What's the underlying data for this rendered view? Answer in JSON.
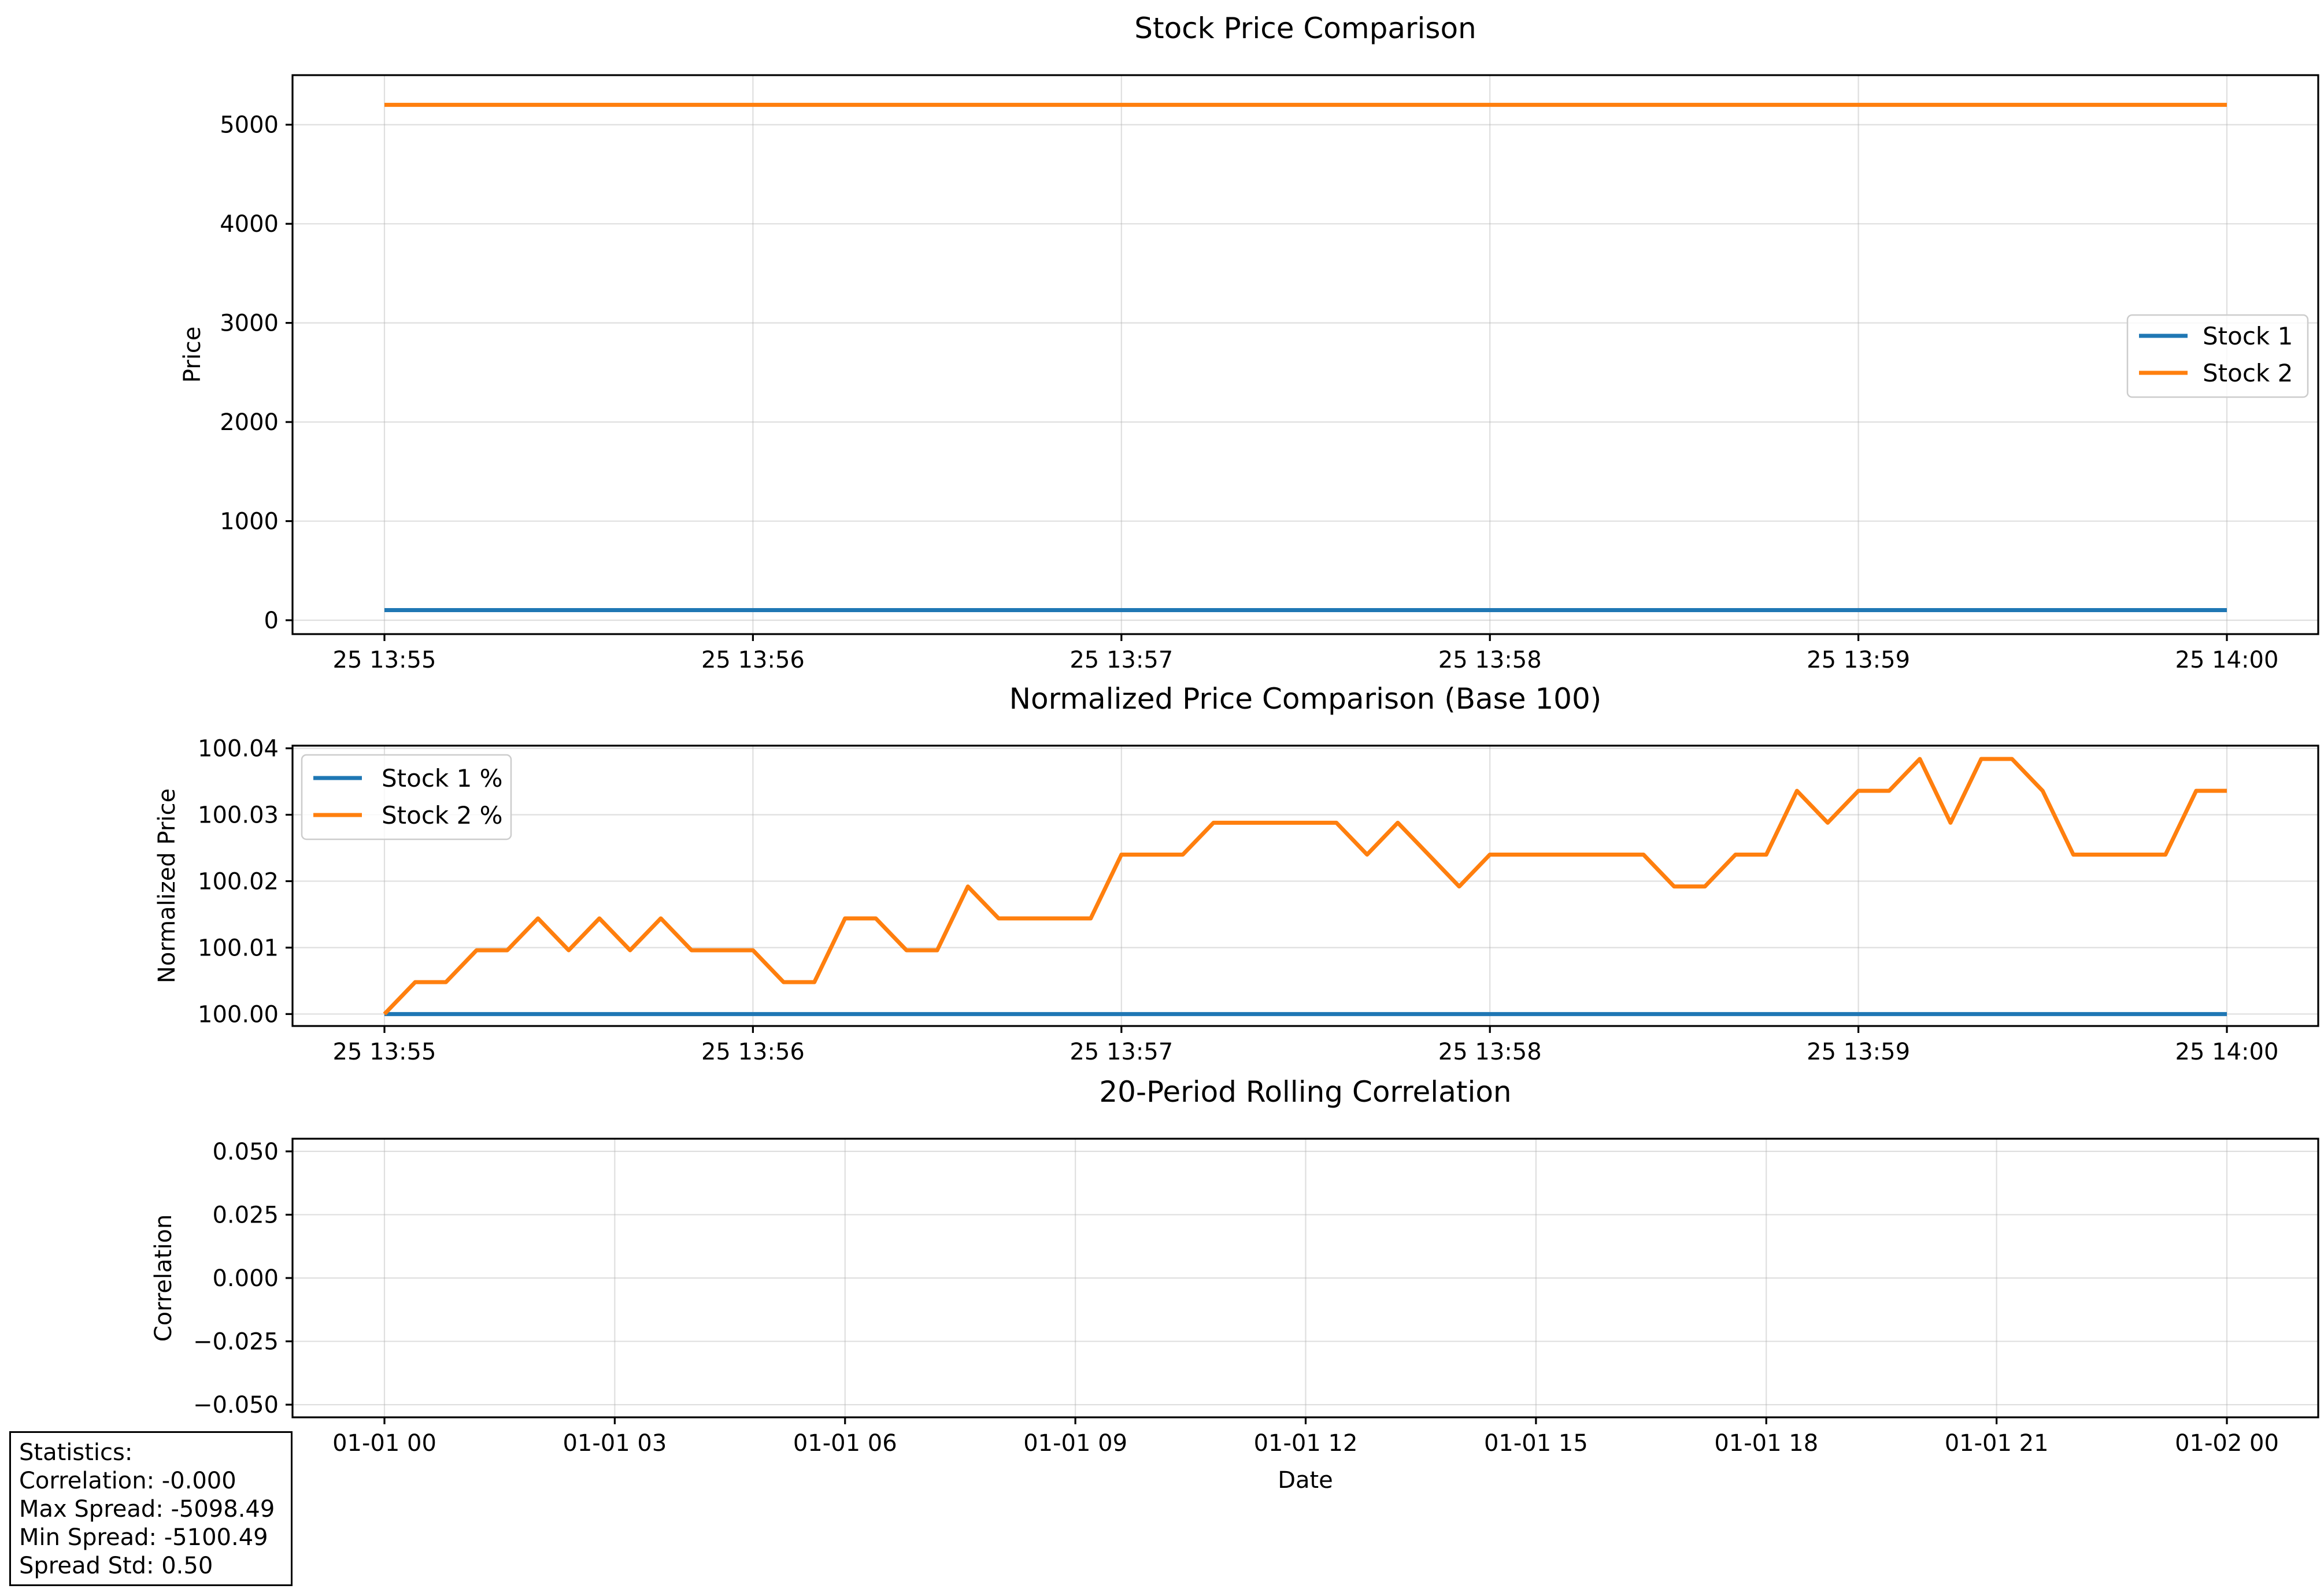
{
  "chart_data": [
    {
      "type": "line",
      "title": "Stock Price Comparison",
      "xlabel": "",
      "ylabel": "Price",
      "x": [
        "25 13:55",
        "25 13:56",
        "25 13:57",
        "25 13:58",
        "25 13:59",
        "25 14:00"
      ],
      "x_ticks": [
        "25 13:55",
        "25 13:56",
        "25 13:57",
        "25 13:58",
        "25 13:59",
        "25 14:00"
      ],
      "y_ticks": [
        0,
        1000,
        2000,
        3000,
        4000,
        5000
      ],
      "ylim": [
        -140,
        5500
      ],
      "grid": true,
      "legend": "center-right",
      "series": [
        {
          "name": "Stock 1",
          "color": "#1f77b4",
          "values": [
            102,
            102,
            102,
            102,
            102,
            102
          ]
        },
        {
          "name": "Stock 2",
          "color": "#ff7f0e",
          "values": [
            5200,
            5200,
            5200,
            5200,
            5200,
            5200
          ]
        }
      ]
    },
    {
      "type": "line",
      "title": "Normalized Price Comparison (Base 100)",
      "xlabel": "",
      "ylabel": "Normalized Price",
      "x_ticks": [
        "25 13:55",
        "25 13:56",
        "25 13:57",
        "25 13:58",
        "25 13:59",
        "25 14:00"
      ],
      "y_ticks": [
        "100.00",
        "100.01",
        "100.02",
        "100.03",
        "100.04"
      ],
      "ylim": [
        99.9982,
        100.0404
      ],
      "grid": true,
      "legend": "upper-left",
      "series": [
        {
          "name": "Stock 1 %",
          "color": "#1f77b4",
          "values": [
            100.0,
            100.0,
            100.0,
            100.0,
            100.0,
            100.0,
            100.0,
            100.0,
            100.0,
            100.0,
            100.0,
            100.0,
            100.0,
            100.0,
            100.0,
            100.0,
            100.0,
            100.0,
            100.0,
            100.0,
            100.0,
            100.0,
            100.0,
            100.0,
            100.0,
            100.0,
            100.0,
            100.0,
            100.0,
            100.0,
            100.0,
            100.0,
            100.0,
            100.0,
            100.0,
            100.0,
            100.0,
            100.0,
            100.0,
            100.0,
            100.0,
            100.0,
            100.0,
            100.0,
            100.0,
            100.0,
            100.0,
            100.0,
            100.0,
            100.0,
            100.0,
            100.0,
            100.0,
            100.0,
            100.0,
            100.0,
            100.0,
            100.0,
            100.0,
            100.0,
            100.0
          ]
        },
        {
          "name": "Stock 2 %",
          "color": "#ff7f0e",
          "values": [
            100.0,
            100.0048,
            100.0048,
            100.0096,
            100.0096,
            100.0144,
            100.0096,
            100.0144,
            100.0096,
            100.0144,
            100.0096,
            100.0096,
            100.0096,
            100.0048,
            100.0048,
            100.0144,
            100.0144,
            100.0096,
            100.0096,
            100.0192,
            100.0144,
            100.0144,
            100.0144,
            100.0144,
            100.024,
            100.024,
            100.024,
            100.0288,
            100.0288,
            100.0288,
            100.0288,
            100.0288,
            100.024,
            100.0288,
            100.024,
            100.0192,
            100.024,
            100.024,
            100.024,
            100.024,
            100.024,
            100.024,
            100.0192,
            100.0192,
            100.024,
            100.024,
            100.0336,
            100.0288,
            100.0336,
            100.0336,
            100.0384,
            100.0288,
            100.0384,
            100.0384,
            100.0336,
            100.024,
            100.024,
            100.024,
            100.024,
            100.0336,
            100.0336
          ]
        }
      ]
    },
    {
      "type": "line",
      "title": "20-Period Rolling Correlation",
      "xlabel": "Date",
      "ylabel": "Correlation",
      "x_ticks": [
        "01-01 00",
        "01-01 03",
        "01-01 06",
        "01-01 09",
        "01-01 12",
        "01-01 15",
        "01-01 18",
        "01-01 21",
        "01-02 00"
      ],
      "y_ticks": [
        "0.050",
        "0.025",
        "0.000",
        "−0.025",
        "−0.050"
      ],
      "ylim": [
        -0.055,
        0.055
      ],
      "grid": true,
      "series": []
    }
  ],
  "stats": {
    "heading": "Statistics:",
    "correlation": "Correlation: -0.000",
    "max_spread": "Max Spread: -5098.49",
    "min_spread": "Min Spread: -5100.49",
    "spread_std": "Spread Std: 0.50"
  }
}
